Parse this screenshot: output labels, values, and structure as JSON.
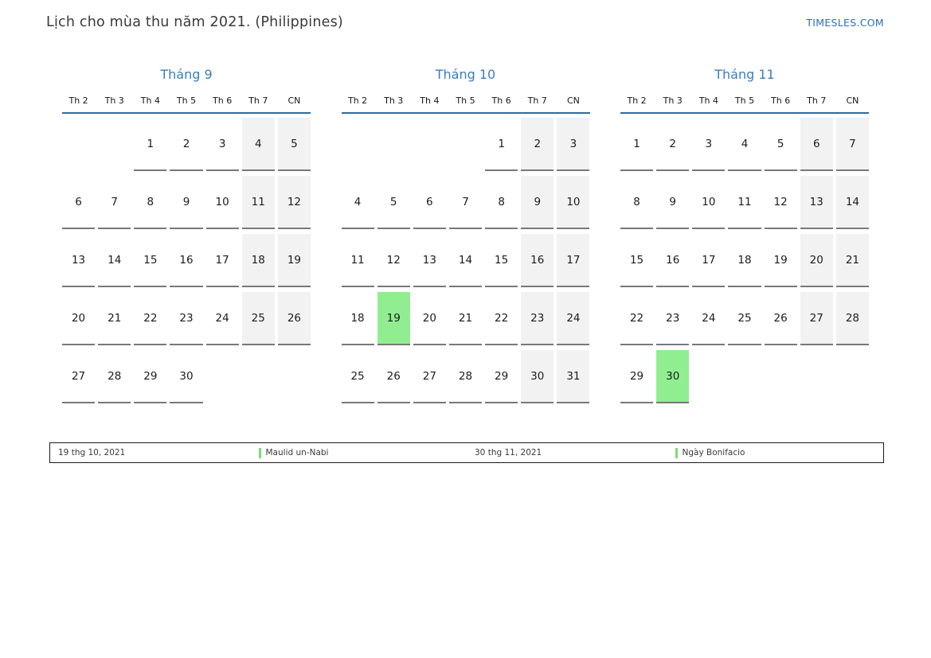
{
  "page": {
    "title": "Lịch cho mùa thu năm 2021. (Philippines)",
    "site_link": "TIMESLES.COM"
  },
  "colors": {
    "accent_blue": "#3b7dbd",
    "header_line_blue": "#31699c",
    "link_blue": "#2a6fc0",
    "weekend_bg": "#f2f2f2",
    "highlight_green": "#90ee90",
    "marker_green": "#77dd77"
  },
  "calendar": {
    "day_headers": [
      "Th 2",
      "Th 3",
      "Th 4",
      "Th 5",
      "Th 6",
      "Th 7",
      "CN"
    ],
    "months": [
      {
        "name": "Tháng 9",
        "highlight_days": [],
        "weeks": [
          [
            null,
            null,
            1,
            2,
            3,
            4,
            5
          ],
          [
            6,
            7,
            8,
            9,
            10,
            11,
            12
          ],
          [
            13,
            14,
            15,
            16,
            17,
            18,
            19
          ],
          [
            20,
            21,
            22,
            23,
            24,
            25,
            26
          ],
          [
            27,
            28,
            29,
            30,
            null,
            null,
            null
          ]
        ]
      },
      {
        "name": "Tháng 10",
        "highlight_days": [
          19
        ],
        "weeks": [
          [
            null,
            null,
            null,
            null,
            1,
            2,
            3
          ],
          [
            4,
            5,
            6,
            7,
            8,
            9,
            10
          ],
          [
            11,
            12,
            13,
            14,
            15,
            16,
            17
          ],
          [
            18,
            19,
            20,
            21,
            22,
            23,
            24
          ],
          [
            25,
            26,
            27,
            28,
            29,
            30,
            31
          ]
        ]
      },
      {
        "name": "Tháng 11",
        "highlight_days": [
          30
        ],
        "weeks": [
          [
            1,
            2,
            3,
            4,
            5,
            6,
            7
          ],
          [
            8,
            9,
            10,
            11,
            12,
            13,
            14
          ],
          [
            15,
            16,
            17,
            18,
            19,
            20,
            21
          ],
          [
            22,
            23,
            24,
            25,
            26,
            27,
            28
          ],
          [
            29,
            30,
            null,
            null,
            null,
            null,
            null
          ]
        ]
      }
    ]
  },
  "legend": {
    "items": [
      {
        "date": "19 thg 10, 2021",
        "label": "Maulid un-Nabi"
      },
      {
        "date": "30 thg 11, 2021",
        "label": "Ngày Bonifacio"
      }
    ]
  }
}
